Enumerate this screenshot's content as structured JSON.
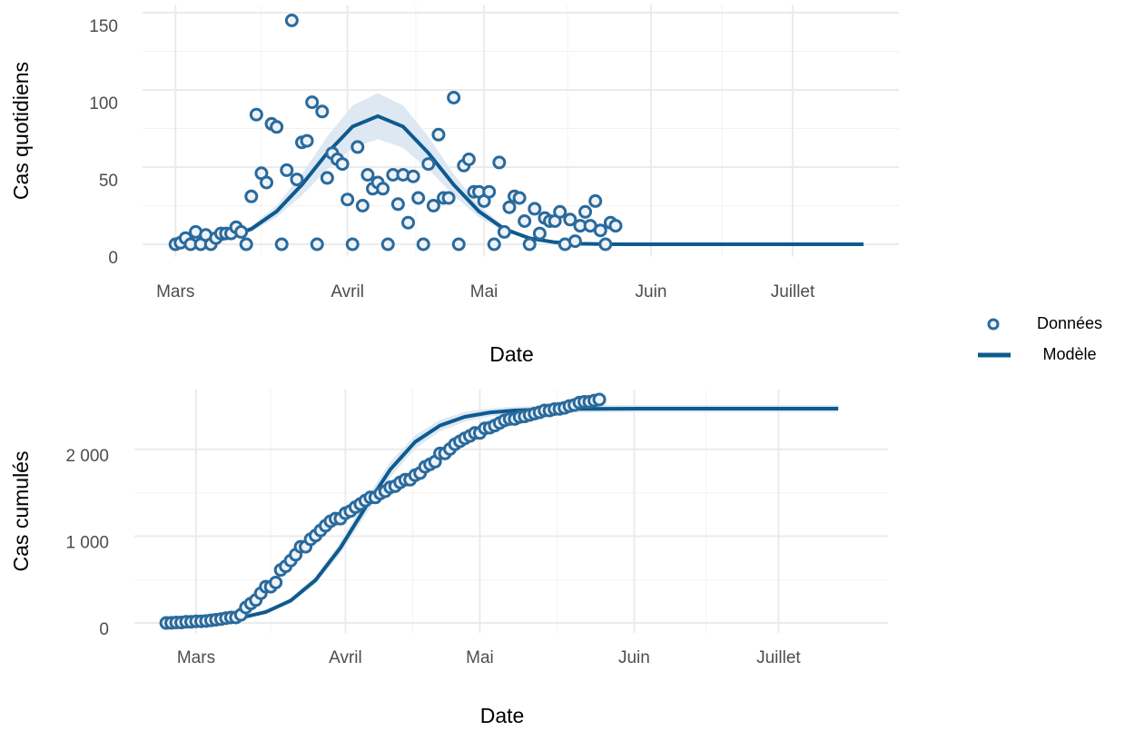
{
  "chart_data": [
    {
      "type": "line",
      "x_label": "Date",
      "y_label": "Cas quotidiens",
      "xlim": [
        -6.5,
        143
      ],
      "ylim": [
        -8,
        155
      ],
      "xticks": [
        {
          "value": 0,
          "label": "Mars"
        },
        {
          "value": 34,
          "label": "Avril"
        },
        {
          "value": 61,
          "label": "Mai"
        },
        {
          "value": 94,
          "label": "Juin"
        },
        {
          "value": 122,
          "label": "Juillet"
        }
      ],
      "yticks": [
        0,
        50,
        100,
        150
      ],
      "grid": true,
      "legend": "right",
      "series": [
        {
          "name": "Données",
          "type": "scatter",
          "color": "#2a6a9c",
          "x": [
            0,
            1,
            2,
            3,
            4,
            5,
            6,
            7,
            8,
            9,
            10,
            11,
            12,
            13,
            14,
            15,
            16,
            17,
            18,
            19,
            20,
            21,
            22,
            23,
            24,
            25,
            26,
            27,
            28,
            29,
            30,
            31,
            32,
            33,
            34,
            35,
            36,
            37,
            38,
            39,
            40,
            41,
            42,
            43,
            44,
            45,
            46,
            47,
            48,
            49,
            50,
            51,
            52,
            53,
            54,
            55,
            56,
            57,
            58,
            59,
            60,
            61,
            62,
            63,
            64,
            65,
            66,
            67,
            68,
            69,
            70,
            71,
            72,
            73,
            74,
            75,
            76,
            77,
            78,
            79,
            80,
            81,
            82,
            83,
            84,
            85,
            86,
            87
          ],
          "values": [
            0,
            1,
            4,
            0,
            8,
            0,
            6,
            0,
            4,
            7,
            7,
            7,
            11,
            8,
            0,
            31,
            84,
            46,
            40,
            78,
            76,
            0,
            48,
            145,
            42,
            66,
            67,
            92,
            0,
            86,
            43,
            59,
            55,
            52,
            29,
            0,
            63,
            25,
            45,
            36,
            40,
            36,
            0,
            45,
            26,
            45,
            14,
            44,
            30,
            0,
            52,
            25,
            71,
            30,
            30,
            95,
            0,
            51,
            55,
            34,
            34,
            28,
            34,
            0,
            53,
            8,
            24,
            31,
            30,
            15,
            0,
            23,
            7,
            17,
            15,
            15,
            21,
            0,
            16,
            2,
            12,
            21,
            12,
            28,
            9,
            0,
            14,
            12
          ]
        },
        {
          "name": "Modèle",
          "type": "line",
          "color": "#0e5a8f",
          "band_color": "#dde8f3",
          "x": [
            0,
            5,
            10,
            15,
            20,
            25,
            30,
            35,
            40,
            45,
            50,
            55,
            60,
            65,
            70,
            75,
            80,
            85,
            90,
            95,
            100,
            105,
            110,
            115,
            120,
            125,
            130,
            136
          ],
          "values": [
            0.4,
            1.3,
            3.9,
            9.9,
            21.3,
            38.6,
            59.1,
            76.2,
            83,
            76.2,
            59.1,
            38.6,
            21.3,
            9.9,
            3.9,
            1.3,
            0.4,
            0.1,
            0,
            0,
            0,
            0,
            0,
            0,
            0,
            0,
            0,
            0
          ],
          "lower": [
            0.3,
            1.1,
            3.2,
            8.1,
            17.5,
            31.7,
            48.5,
            62.5,
            68.1,
            62.5,
            48.5,
            31.7,
            17.5,
            8.1,
            3.2,
            1.1,
            0.3,
            0.1,
            0,
            0,
            0,
            0,
            0,
            0,
            0,
            0,
            0,
            0
          ],
          "upper": [
            0.5,
            1.5,
            4.6,
            11.7,
            25.1,
            45.5,
            69.7,
            89.9,
            97.9,
            89.9,
            69.7,
            45.5,
            25.1,
            11.7,
            4.6,
            1.5,
            0.5,
            0.1,
            0,
            0,
            0,
            0,
            0,
            0,
            0,
            0,
            0,
            0
          ]
        }
      ]
    },
    {
      "type": "line",
      "x_label": "Date",
      "y_label": "Cas cumulés",
      "xlim": [
        -6.4,
        145
      ],
      "ylim": [
        -115,
        2690
      ],
      "xticks": [
        {
          "value": 6,
          "label": "Mars"
        },
        {
          "value": 36,
          "label": "Avril"
        },
        {
          "value": 63,
          "label": "Mai"
        },
        {
          "value": 94,
          "label": "Juin"
        },
        {
          "value": 123,
          "label": "Juillet"
        }
      ],
      "yticks": [
        0,
        {
          "value": 1000,
          "label": "1 000"
        },
        {
          "value": 2000,
          "label": "2 000"
        }
      ],
      "grid": true,
      "series": [
        {
          "type": "scatter",
          "color": "#2a6a9c",
          "x": [
            0,
            1,
            2,
            3,
            4,
            5,
            6,
            7,
            8,
            9,
            10,
            11,
            12,
            13,
            14,
            15,
            16,
            17,
            18,
            19,
            20,
            21,
            22,
            23,
            24,
            25,
            26,
            27,
            28,
            29,
            30,
            31,
            32,
            33,
            34,
            35,
            36,
            37,
            38,
            39,
            40,
            41,
            42,
            43,
            44,
            45,
            46,
            47,
            48,
            49,
            50,
            51,
            52,
            53,
            54,
            55,
            56,
            57,
            58,
            59,
            60,
            61,
            62,
            63,
            64,
            65,
            66,
            67,
            68,
            69,
            70,
            71,
            72,
            73,
            74,
            75,
            76,
            77,
            78,
            79,
            80,
            81,
            82,
            83,
            84,
            85,
            86,
            87
          ],
          "values": [
            0,
            1,
            5,
            5,
            13,
            13,
            19,
            19,
            23,
            30,
            37,
            44,
            55,
            63,
            63,
            94,
            178,
            224,
            264,
            342,
            418,
            418,
            466,
            611,
            653,
            719,
            786,
            878,
            878,
            964,
            1007,
            1066,
            1121,
            1173,
            1202,
            1202,
            1265,
            1290,
            1335,
            1371,
            1411,
            1447,
            1447,
            1492,
            1518,
            1563,
            1577,
            1621,
            1651,
            1651,
            1703,
            1728,
            1799,
            1829,
            1859,
            1954,
            1954,
            2005,
            2060,
            2094,
            2128,
            2156,
            2190,
            2190,
            2243,
            2251,
            2275,
            2306,
            2336,
            2351,
            2351,
            2374,
            2381,
            2398,
            2413,
            2428,
            2449,
            2449,
            2465,
            2467,
            2479,
            2500,
            2512,
            2540,
            2549,
            2549,
            2563,
            2575
          ]
        },
        {
          "type": "line",
          "color": "#0e5a8f",
          "band_color": "#dde8f3",
          "x": [
            0,
            5,
            10,
            15,
            20,
            25,
            30,
            35,
            40,
            45,
            50,
            55,
            60,
            65,
            70,
            75,
            80,
            85,
            90,
            95,
            100,
            105,
            110,
            115,
            120,
            125,
            130,
            135
          ],
          "values": [
            6,
            13,
            28,
            60,
            126,
            257,
            494,
            867,
            1330,
            1768,
            2086,
            2276,
            2376,
            2426,
            2449,
            2460,
            2466,
            2468,
            2469,
            2470,
            2470,
            2470,
            2470,
            2470,
            2470,
            2470,
            2470,
            2470
          ],
          "lower": [
            5,
            11,
            24,
            52,
            110,
            228,
            450,
            800,
            1240,
            1680,
            2010,
            2210,
            2320,
            2380,
            2405,
            2418,
            2424,
            2427,
            2428,
            2429,
            2429,
            2429,
            2429,
            2429,
            2429,
            2429,
            2429,
            2429
          ],
          "upper": [
            7,
            15,
            32,
            68,
            142,
            286,
            538,
            934,
            1420,
            1856,
            2162,
            2342,
            2432,
            2472,
            2493,
            2502,
            2508,
            2510,
            2511,
            2512,
            2512,
            2512,
            2512,
            2512,
            2512,
            2512,
            2512,
            2512
          ]
        }
      ]
    }
  ]
}
